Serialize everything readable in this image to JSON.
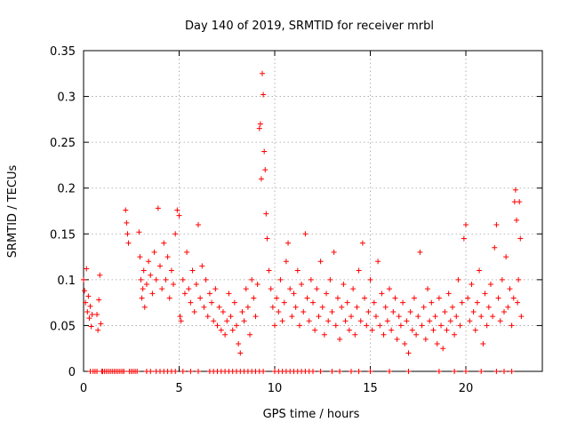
{
  "chart_data": {
    "type": "scatter",
    "title": "Day 140 of 2019, SRMTID for receiver mrbl",
    "xlabel": "GPS time / hours",
    "ylabel": "SRMTID / TECUs",
    "xlim": [
      0,
      24
    ],
    "ylim": [
      0,
      0.35
    ],
    "x_ticks": [
      0,
      5,
      10,
      15,
      20
    ],
    "x_tick_labels": [
      "0",
      "5",
      "10",
      "15",
      "20"
    ],
    "y_ticks": [
      0,
      0.05,
      0.1,
      0.15,
      0.2,
      0.25,
      0.3,
      0.35
    ],
    "y_tick_labels": [
      "0",
      "0.05",
      "0.1",
      "0.15",
      "0.2",
      "0.25",
      "0.3",
      "0.35"
    ],
    "grid": true,
    "marker": "+",
    "series": [
      {
        "name": "SRMTID",
        "color": "#ff0000",
        "points": [
          [
            0.0,
            0.1
          ],
          [
            0.05,
            0.088
          ],
          [
            0.1,
            0.075
          ],
          [
            0.15,
            0.112
          ],
          [
            0.2,
            0.065
          ],
          [
            0.25,
            0.082
          ],
          [
            0.3,
            0.058
          ],
          [
            0.35,
            0.071
          ],
          [
            0.4,
            0.049
          ],
          [
            0.45,
            0.062
          ],
          [
            0.7,
            0.062
          ],
          [
            0.75,
            0.045
          ],
          [
            0.8,
            0.078
          ],
          [
            0.85,
            0.105
          ],
          [
            0.9,
            0.052
          ],
          [
            2.1,
            0.0
          ],
          [
            2.2,
            0.176
          ],
          [
            2.25,
            0.162
          ],
          [
            2.3,
            0.15
          ],
          [
            2.35,
            0.14
          ],
          [
            2.9,
            0.152
          ],
          [
            2.95,
            0.125
          ],
          [
            3.0,
            0.1
          ],
          [
            3.05,
            0.08
          ],
          [
            3.1,
            0.09
          ],
          [
            3.15,
            0.11
          ],
          [
            3.2,
            0.07
          ],
          [
            3.3,
            0.095
          ],
          [
            3.4,
            0.12
          ],
          [
            3.5,
            0.105
          ],
          [
            3.6,
            0.085
          ],
          [
            3.7,
            0.13
          ],
          [
            3.8,
            0.1
          ],
          [
            3.9,
            0.178
          ],
          [
            4.0,
            0.115
          ],
          [
            4.1,
            0.09
          ],
          [
            4.2,
            0.14
          ],
          [
            4.3,
            0.1
          ],
          [
            4.4,
            0.125
          ],
          [
            4.5,
            0.08
          ],
          [
            4.6,
            0.11
          ],
          [
            4.7,
            0.095
          ],
          [
            4.8,
            0.15
          ],
          [
            4.9,
            0.176
          ],
          [
            5.0,
            0.17
          ],
          [
            5.05,
            0.06
          ],
          [
            5.1,
            0.055
          ],
          [
            5.2,
            0.1
          ],
          [
            5.3,
            0.085
          ],
          [
            5.4,
            0.13
          ],
          [
            5.5,
            0.09
          ],
          [
            5.6,
            0.075
          ],
          [
            5.7,
            0.11
          ],
          [
            5.8,
            0.065
          ],
          [
            5.9,
            0.095
          ],
          [
            6.0,
            0.16
          ],
          [
            6.1,
            0.08
          ],
          [
            6.2,
            0.115
          ],
          [
            6.3,
            0.07
          ],
          [
            6.4,
            0.1
          ],
          [
            6.5,
            0.06
          ],
          [
            6.6,
            0.085
          ],
          [
            6.7,
            0.075
          ],
          [
            6.8,
            0.055
          ],
          [
            6.9,
            0.09
          ],
          [
            7.0,
            0.05
          ],
          [
            7.1,
            0.07
          ],
          [
            7.2,
            0.045
          ],
          [
            7.3,
            0.065
          ],
          [
            7.4,
            0.04
          ],
          [
            7.5,
            0.055
          ],
          [
            7.6,
            0.085
          ],
          [
            7.7,
            0.06
          ],
          [
            7.8,
            0.045
          ],
          [
            7.9,
            0.075
          ],
          [
            8.0,
            0.05
          ],
          [
            8.1,
            0.03
          ],
          [
            8.2,
            0.02
          ],
          [
            8.3,
            0.065
          ],
          [
            8.4,
            0.055
          ],
          [
            8.5,
            0.09
          ],
          [
            8.6,
            0.07
          ],
          [
            8.7,
            0.04
          ],
          [
            8.8,
            0.1
          ],
          [
            8.9,
            0.08
          ],
          [
            9.0,
            0.06
          ],
          [
            9.1,
            0.095
          ],
          [
            9.2,
            0.265
          ],
          [
            9.25,
            0.27
          ],
          [
            9.3,
            0.21
          ],
          [
            9.35,
            0.325
          ],
          [
            9.4,
            0.302
          ],
          [
            9.45,
            0.24
          ],
          [
            9.5,
            0.22
          ],
          [
            9.55,
            0.172
          ],
          [
            9.6,
            0.145
          ],
          [
            9.7,
            0.11
          ],
          [
            9.8,
            0.09
          ],
          [
            9.9,
            0.07
          ],
          [
            10.0,
            0.05
          ],
          [
            10.1,
            0.08
          ],
          [
            10.2,
            0.065
          ],
          [
            10.3,
            0.1
          ],
          [
            10.4,
            0.055
          ],
          [
            10.5,
            0.075
          ],
          [
            10.6,
            0.12
          ],
          [
            10.7,
            0.14
          ],
          [
            10.8,
            0.09
          ],
          [
            10.9,
            0.06
          ],
          [
            11.0,
            0.085
          ],
          [
            11.1,
            0.07
          ],
          [
            11.2,
            0.11
          ],
          [
            11.3,
            0.05
          ],
          [
            11.4,
            0.095
          ],
          [
            11.5,
            0.065
          ],
          [
            11.6,
            0.15
          ],
          [
            11.7,
            0.08
          ],
          [
            11.8,
            0.055
          ],
          [
            11.9,
            0.1
          ],
          [
            12.0,
            0.075
          ],
          [
            12.1,
            0.045
          ],
          [
            12.2,
            0.09
          ],
          [
            12.3,
            0.06
          ],
          [
            12.4,
            0.12
          ],
          [
            12.5,
            0.07
          ],
          [
            12.6,
            0.04
          ],
          [
            12.7,
            0.085
          ],
          [
            12.8,
            0.055
          ],
          [
            12.9,
            0.1
          ],
          [
            13.0,
            0.065
          ],
          [
            13.1,
            0.13
          ],
          [
            13.2,
            0.05
          ],
          [
            13.3,
            0.08
          ],
          [
            13.4,
            0.035
          ],
          [
            13.5,
            0.07
          ],
          [
            13.6,
            0.095
          ],
          [
            13.7,
            0.055
          ],
          [
            13.8,
            0.075
          ],
          [
            13.9,
            0.045
          ],
          [
            14.0,
            0.06
          ],
          [
            14.1,
            0.09
          ],
          [
            14.2,
            0.04
          ],
          [
            14.3,
            0.07
          ],
          [
            14.4,
            0.11
          ],
          [
            14.5,
            0.055
          ],
          [
            14.6,
            0.14
          ],
          [
            14.7,
            0.08
          ],
          [
            14.8,
            0.05
          ],
          [
            14.9,
            0.065
          ],
          [
            15.0,
            0.1
          ],
          [
            15.1,
            0.045
          ],
          [
            15.2,
            0.075
          ],
          [
            15.3,
            0.06
          ],
          [
            15.4,
            0.12
          ],
          [
            15.5,
            0.05
          ],
          [
            15.6,
            0.085
          ],
          [
            15.7,
            0.04
          ],
          [
            15.8,
            0.07
          ],
          [
            15.9,
            0.055
          ],
          [
            16.0,
            0.09
          ],
          [
            16.1,
            0.045
          ],
          [
            16.2,
            0.065
          ],
          [
            16.3,
            0.08
          ],
          [
            16.4,
            0.035
          ],
          [
            16.5,
            0.06
          ],
          [
            16.6,
            0.05
          ],
          [
            16.7,
            0.075
          ],
          [
            16.8,
            0.03
          ],
          [
            16.9,
            0.055
          ],
          [
            17.0,
            0.02
          ],
          [
            17.1,
            0.065
          ],
          [
            17.2,
            0.045
          ],
          [
            17.3,
            0.08
          ],
          [
            17.4,
            0.04
          ],
          [
            17.5,
            0.06
          ],
          [
            17.6,
            0.13
          ],
          [
            17.7,
            0.05
          ],
          [
            17.8,
            0.07
          ],
          [
            17.9,
            0.035
          ],
          [
            18.0,
            0.09
          ],
          [
            18.1,
            0.055
          ],
          [
            18.2,
            0.075
          ],
          [
            18.3,
            0.045
          ],
          [
            18.4,
            0.06
          ],
          [
            18.5,
            0.03
          ],
          [
            18.6,
            0.08
          ],
          [
            18.7,
            0.05
          ],
          [
            18.8,
            0.025
          ],
          [
            18.9,
            0.065
          ],
          [
            19.0,
            0.045
          ],
          [
            19.1,
            0.085
          ],
          [
            19.2,
            0.055
          ],
          [
            19.3,
            0.07
          ],
          [
            19.4,
            0.04
          ],
          [
            19.5,
            0.06
          ],
          [
            19.6,
            0.1
          ],
          [
            19.7,
            0.05
          ],
          [
            19.8,
            0.075
          ],
          [
            19.9,
            0.145
          ],
          [
            20.0,
            0.16
          ],
          [
            20.1,
            0.08
          ],
          [
            20.2,
            0.055
          ],
          [
            20.3,
            0.095
          ],
          [
            20.4,
            0.065
          ],
          [
            20.5,
            0.045
          ],
          [
            20.6,
            0.075
          ],
          [
            20.7,
            0.11
          ],
          [
            20.8,
            0.06
          ],
          [
            20.9,
            0.03
          ],
          [
            21.0,
            0.085
          ],
          [
            21.1,
            0.05
          ],
          [
            21.2,
            0.07
          ],
          [
            21.3,
            0.095
          ],
          [
            21.4,
            0.06
          ],
          [
            21.5,
            0.135
          ],
          [
            21.6,
            0.16
          ],
          [
            21.7,
            0.08
          ],
          [
            21.8,
            0.055
          ],
          [
            21.9,
            0.1
          ],
          [
            22.0,
            0.065
          ],
          [
            22.1,
            0.125
          ],
          [
            22.2,
            0.07
          ],
          [
            22.3,
            0.09
          ],
          [
            22.4,
            0.05
          ],
          [
            22.5,
            0.08
          ],
          [
            22.55,
            0.185
          ],
          [
            22.6,
            0.198
          ],
          [
            22.65,
            0.165
          ],
          [
            22.7,
            0.075
          ],
          [
            22.75,
            0.1
          ],
          [
            22.8,
            0.185
          ],
          [
            22.85,
            0.145
          ],
          [
            22.9,
            0.06
          ]
        ],
        "zero_points": [
          0.35,
          0.5,
          0.6,
          0.7,
          0.95,
          1.0,
          1.1,
          1.2,
          1.3,
          1.4,
          1.5,
          1.6,
          1.7,
          1.8,
          1.9,
          2.0,
          2.1,
          2.4,
          2.5,
          2.6,
          2.7,
          2.8,
          3.3,
          3.5,
          3.8,
          4.0,
          4.2,
          4.4,
          4.6,
          4.8,
          5.2,
          5.6,
          6.0,
          6.6,
          6.8,
          7.0,
          7.2,
          7.4,
          7.6,
          7.8,
          8.0,
          8.2,
          8.4,
          8.6,
          8.8,
          9.0,
          9.2,
          9.4,
          10.0,
          10.2,
          10.4,
          10.6,
          10.8,
          11.0,
          11.2,
          11.4,
          11.6,
          11.8,
          12.0,
          12.4,
          13.0,
          13.4,
          14.0,
          14.4,
          15.0,
          16.0,
          17.0,
          18.6,
          19.4,
          20.0,
          20.8,
          21.6,
          22.0,
          22.4
        ]
      }
    ]
  }
}
